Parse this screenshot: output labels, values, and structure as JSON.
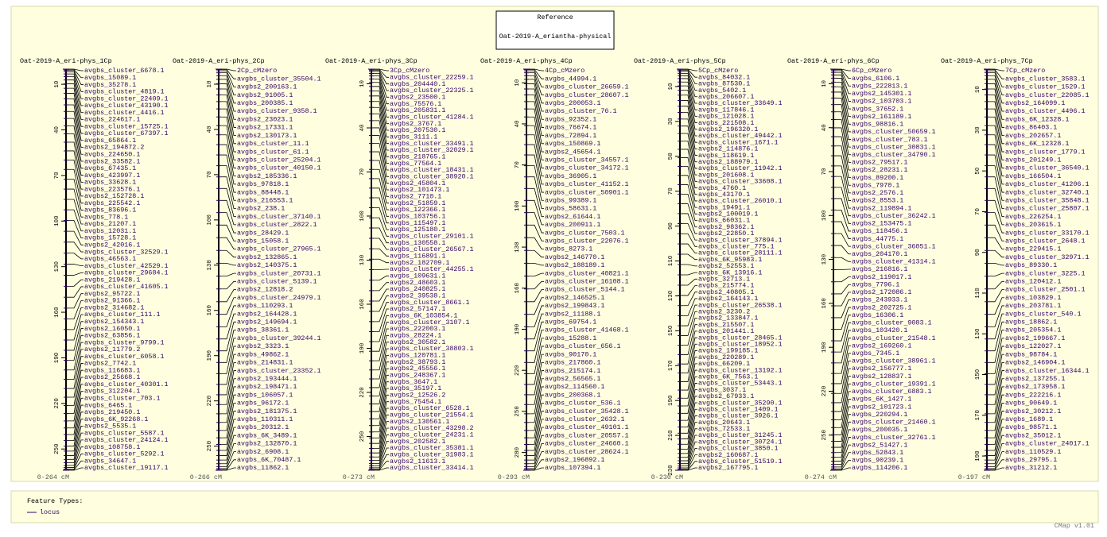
{
  "reference": {
    "heading": "Reference",
    "name": "Oat-2019-A_eriantha-physical"
  },
  "maps": [
    {
      "title": "Oat-2019-A_eri-phys_1Cp",
      "range": {
        "start": 0,
        "end": 264,
        "label": "0-264 cM"
      },
      "ticks": [
        10,
        40,
        70,
        100,
        130,
        160,
        190,
        220,
        250
      ],
      "features": [
        "avgbs_cluster_6678.1",
        "avgbs_15089.1",
        "avgbs_35278.1",
        "avgbs_cluster_4819.1",
        "avgbs_cluster_22409.1",
        "avgbs_cluster_43190.1",
        "avgbs_cluster_4416.1",
        "avgbs_224617.1",
        "avgbs_cluster_15725.1",
        "avgbs_cluster_67397.1",
        "avgbs_65864.1",
        "avgbs2_194872.2",
        "avgbs_224650.1",
        "avgbs2_33582.1",
        "avgbs_67435.1",
        "avgbs_423997.1",
        "avgbs_33628.1",
        "avgbs_223576.1",
        "avgbs2_152728.1",
        "avgbs_225542.1",
        "avgbs_83696.1",
        "avgbs_778.1",
        "avgbs_21207.1",
        "avgbs_12031.1",
        "avgbs_15728.1",
        "avgbs2_42016.1",
        "avgbs_cluster_32529.1",
        "avgbs_46563.1",
        "avgbs_cluster_42529.1",
        "avgbs_cluster_29684.1",
        "avgbs_219428.1",
        "avgbs_cluster_41605.1",
        "avgbs2_95722.1",
        "avgbs2_91366.1",
        "avgbs2_314682.1",
        "avgbs_cluster_111.1",
        "avgbs2_154343.1",
        "avgbs2_16050.1",
        "avgbs2_63856.1",
        "avgbs_cluster_9799.1",
        "avgbs2_11779.2",
        "avgbs_cluster_6058.1",
        "avgbs2_7742.1",
        "avgbs_116683.1",
        "avgbs2_25668.1",
        "avgbs_cluster_40301.1",
        "avgbs_312204.1",
        "avgbs_cluster_703.1",
        "avgbs_6465.1",
        "avgbs_219450.1",
        "avgbs_6K_92268.1",
        "avgbs2_5535.1",
        "avgbs_cluster_5587.1",
        "avgbs_cluster_24124.1",
        "avgbs_108758.1",
        "avgbs_cluster_5292.1",
        "avgbs_34647.1",
        "avgbs_cluster_19117.1"
      ]
    },
    {
      "title": "Oat-2019-A_eri-phys_2Cp",
      "range": {
        "start": 0,
        "end": 266,
        "label": "0-266 cM"
      },
      "ticks": [
        10,
        40,
        70,
        100,
        130,
        160,
        190,
        220,
        250
      ],
      "features": [
        "2Cp_cMzero",
        "avgbs_cluster_35504.1",
        "avgbs2_200163.1",
        "avgbs2_91005.1",
        "avgbs_200385.1",
        "avgbs_cluster_9358.1",
        "avgbs2_23023.1",
        "avgbs2_17331.1",
        "avgbs2_130173.1",
        "avgbs_cluster_11.1",
        "avgbs_cluster_61.1",
        "avgbs_cluster_25204.1",
        "avgbs_cluster_40150.1",
        "avgbs2_185336.1",
        "avgbs_97818.1",
        "avgbs_88448.1",
        "avgbs_216553.1",
        "avgbs2_238.1",
        "avgbs_cluster_37140.1",
        "avgbs_cluster_2822.1",
        "avgbs_28429.1",
        "avgbs_15058.1",
        "avgbs_cluster_27965.1",
        "avgbs2_132865.1",
        "avgbs2_140375.1",
        "avgbs_cluster_20731.1",
        "avgbs_cluster_5139.1",
        "avgbs2_12818.2",
        "avgbs_cluster_24979.1",
        "avgbs_110293.1",
        "avgbs2_164428.1",
        "avgbs2_149694.1",
        "avgbs_38361.1",
        "avgbs_cluster_39244.1",
        "avgbs2_3323.1",
        "avgbs_49862.1",
        "avgbs_214831.1",
        "avgbs_cluster_23352.1",
        "avgbs2_193444.1",
        "avgbs2_198471.1",
        "avgbs_106057.1",
        "avgbs_96172.1",
        "avgbs2_181375.1",
        "avgbs_110311.1",
        "avgbs_20312.1",
        "avgbs_6K_3489.1",
        "avgbs2_132870.1",
        "avgbs2_6908.1",
        "avgbs_6K_70487.1",
        "avgbs_11862.1"
      ]
    },
    {
      "title": "Oat-2019-A_eri-phys_3Cp",
      "range": {
        "start": 0,
        "end": 273,
        "label": "0-273 cM"
      },
      "ticks": [
        10,
        40,
        70,
        100,
        130,
        160,
        190,
        220,
        250
      ],
      "features": [
        "3Cp_cMzero",
        "avgbs_cluster_22259.1",
        "avgbs_204440.1",
        "avgbs_cluster_22325.1",
        "avgbs2_23500.1",
        "avgbs_75576.1",
        "avgbs_205831.1",
        "avgbs_cluster_41284.1",
        "avgbs2_3767.1",
        "avgbs_207530.1",
        "avgbs_3111.1",
        "avgbs_cluster_33491.1",
        "avgbs_cluster_32029.1",
        "avgbs_218765.1",
        "avgbs_77564.1",
        "avgbs_cluster_18431.1",
        "avgbs_cluster_38920.1",
        "avgbs2_45804.1",
        "avgbs2_101473.1",
        "avgbs2_7710.1",
        "avgbs2_51859.1",
        "avgbs_122366.1",
        "avgbs_103756.1",
        "avgbs_115497.1",
        "avgbs_125180.1",
        "avgbs_cluster_29101.1",
        "avgbs_130558.1",
        "avgbs_cluster_26567.1",
        "avgbs_116891.1",
        "avgbs2_182709.1",
        "avgbs_cluster_44255.1",
        "avgbs_109631.1",
        "avgbs2_48603.1",
        "avgbs_240825.1",
        "avgbs2_39538.1",
        "avgbs_cluster_8661.1",
        "avgbs2_57147.1",
        "avgbs_6K_103854.1",
        "avgbs_cluster_3107.1",
        "avgbs_222003.1",
        "avgbs_28224.1",
        "avgbs2_30582.1",
        "avgbs_cluster_38803.1",
        "avgbs_120781.1",
        "avgbs2_38793.1",
        "avgbs2_45556.1",
        "avgbs_248367.1",
        "avgbs_3647.1",
        "avgbs_35197.1",
        "avgbs2_12526.2",
        "avgbs_75454.1",
        "avgbs_cluster_6528.1",
        "avgbs_cluster_21554.1",
        "avgbs2_130561.1",
        "avgbs_cluster_43298.2",
        "avgbs_cluster_24231.1",
        "avgbs_202582.1",
        "avgbs_cluster_35381.1",
        "avgbs_cluster_31983.1",
        "avgbs2_11613.1",
        "avgbs_cluster_33414.1"
      ]
    },
    {
      "title": "Oat-2019-A_eri-phys_4Cp",
      "range": {
        "start": 0,
        "end": 293,
        "label": "0-293 cM"
      },
      "ticks": [
        10,
        40,
        70,
        100,
        130,
        160,
        190,
        220,
        250,
        280
      ],
      "features": [
        "4Cp_cMzero",
        "avgbs_44994.1",
        "avgbs_cluster_26659.1",
        "avgbs_cluster_28607.1",
        "avgbs_200053.1",
        "avgbs_cluster_76.1",
        "avgbs_92352.1",
        "avgbs_76674.1",
        "avgbs_72894.1",
        "avgbs_150869.1",
        "avgbs2_45654.1",
        "avgbs_cluster_34557.1",
        "avgbs_cluster_34172.1",
        "avgbs_36905.1",
        "avgbs_cluster_41152.1",
        "avgbs_cluster_50901.1",
        "avgbs_99389.1",
        "avgbs_58631.1",
        "avgbs2_61644.1",
        "avgbs_200911.1",
        "avgbs_cluster_7503.1",
        "avgbs_cluster_22076.1",
        "avgbs_8273.1",
        "avgbs2_146770.1",
        "avgbs2_188189.1",
        "avgbs_cluster_40821.1",
        "avgbs_cluster_16108.1",
        "avgbs_cluster_5144.1",
        "avgbs2_146525.1",
        "avgbs2_199843.1",
        "avgbs2_11188.1",
        "avgbs_69754.1",
        "avgbs_cluster_41468.1",
        "avgbs_15288.1",
        "avgbs_cluster_656.1",
        "avgbs_90170.1",
        "avgbs_217860.1",
        "avgbs_215174.1",
        "avgbs2_56565.1",
        "avgbs2_114560.1",
        "avgbs_200368.1",
        "avgbs_cluster_536.1",
        "avgbs_cluster_35428.1",
        "avgbs_cluster_2632.1",
        "avgbs_cluster_49101.1",
        "avgbs_cluster_20557.1",
        "avgbs_cluster_24660.1",
        "avgbs_cluster_28624.1",
        "avgbs2_196892.1",
        "avgbs_107394.1"
      ]
    },
    {
      "title": "Oat-2019-A_eri-phys_5Cp",
      "range": {
        "start": 0,
        "end": 230,
        "label": "0-230 cM"
      },
      "ticks": [
        10,
        30,
        50,
        70,
        90,
        110,
        130,
        150,
        170,
        190,
        210,
        230
      ],
      "features": [
        "5Cp_cMzero",
        "avgbs_84032.1",
        "avgbs_87530.1",
        "avgbs_5402.1",
        "avgbs_206607.1",
        "avgbs_cluster_33649.1",
        "avgbs_117846.1",
        "avgbs_121028.1",
        "avgbs_221508.1",
        "avgbs2_196320.1",
        "avgbs_cluster_49442.1",
        "avgbs_cluster_1671.1",
        "avgbs2_114876.1",
        "avgbs_118619.1",
        "avgbs2_188979.1",
        "avgbs_cluster_11942.1",
        "avgbs_201608.1",
        "avgbs_cluster_33608.1",
        "avgbs_4760.1",
        "avgbs_43170.1",
        "avgbs_cluster_26010.1",
        "avgbs_19491.1",
        "avgbs2_100019.1",
        "avgbs_66031.1",
        "avgbs2_98362.1",
        "avgbs2_22850.1",
        "avgbs_cluster_37894.1",
        "avgbs_cluster_775.1",
        "avgbs_cluster_28111.1",
        "avgbs_6K_95983.1",
        "avgbs2_52553.1",
        "avgbs_6K_13916.1",
        "avgbs_32713.1",
        "avgbs_215774.1",
        "avgbs2_40805.1",
        "avgbs2_164143.1",
        "avgbs_cluster_26538.1",
        "avgbs2_3230.2",
        "avgbs2_133847.1",
        "avgbs_215507.1",
        "avgbs_201441.1",
        "avgbs_cluster_28465.1",
        "avgbs_cluster_18952.1",
        "avgbs2_199185.1",
        "avgbs_220289.1",
        "avgbs_66209.1",
        "avgbs_cluster_13192.1",
        "avgbs_6K_7563.1",
        "avgbs_cluster_53443.1",
        "avgbs_3037.1",
        "avgbs2_67933.1",
        "avgbs_cluster_35290.1",
        "avgbs_cluster_1409.1",
        "avgbs_cluster_3926.1",
        "avgbs_20643.1",
        "avgbs_72533.1",
        "avgbs_cluster_31245.1",
        "avgbs_cluster_30724.1",
        "avgbs_cluster_3850.1",
        "avgbs2_160687.1",
        "avgbs_cluster_51519.1",
        "avgbs2_167795.1"
      ]
    },
    {
      "title": "Oat-2019-A_eri-phys_6Cp",
      "range": {
        "start": 0,
        "end": 274,
        "label": "0-274 cM"
      },
      "ticks": [
        10,
        40,
        70,
        100,
        130,
        160,
        190,
        220,
        250
      ],
      "features": [
        "6Cp_cMzero",
        "avgbs_6106.1",
        "avgbs_222813.1",
        "avgbs2_145301.1",
        "avgbs2_103703.1",
        "avgbs_37652.1",
        "avgbs2_161189.1",
        "avgbs_98816.1",
        "avgbs_cluster_50659.1",
        "avgbs_cluster_783.1",
        "avgbs_cluster_30831.1",
        "avgbs_cluster_34790.1",
        "avgbs2_79517.1",
        "avgbs2_28231.1",
        "avgbs_89200.1",
        "avgbs_7970.1",
        "avgbs2_2576.1",
        "avgbs2_8553.1",
        "avgbs2_119894.1",
        "avgbs_cluster_36242.1",
        "avgbs2_153475.1",
        "avgbs_118456.1",
        "avgbs_44775.1",
        "avgbs_cluster_36051.1",
        "avgbs_204170.1",
        "avgbs_cluster_41314.1",
        "avgbs_216816.1",
        "avgbs2_119017.1",
        "avgbs_7796.1",
        "avgbs2_172086.1",
        "avgbs_243933.1",
        "avgbs2_202725.1",
        "avgbs_16306.1",
        "avgbs_cluster_9083.1",
        "avgbs_103420.1",
        "avgbs_cluster_21548.1",
        "avgbs2_169260.1",
        "avgbs_7345.1",
        "avgbs_cluster_38961.1",
        "avgbs2_156777.1",
        "avgbs2_128837.1",
        "avgbs_cluster_19391.1",
        "avgbs_cluster_6883.1",
        "avgbs_6K_1427.1",
        "avgbs2_101723.1",
        "avgbs_220294.1",
        "avgbs_cluster_21460.1",
        "avgbs_200035.1",
        "avgbs_cluster_32761.1",
        "avgbs2_51427.1",
        "avgbs_52843.1",
        "avgbs_90239.1",
        "avgbs_114206.1"
      ]
    },
    {
      "title": "Oat-2019-A_eri-phys_7Cp",
      "range": {
        "start": 0,
        "end": 197,
        "label": "0-197 cM"
      },
      "ticks": [
        10,
        30,
        50,
        70,
        90,
        110,
        130,
        150,
        170,
        190
      ],
      "features": [
        "7Cp_cMzero",
        "avgbs_cluster_3583.1",
        "avgbs_cluster_1529.1",
        "avgbs_cluster_22085.1",
        "avgbs2_164099.1",
        "avgbs_cluster_4496.1",
        "avgbs_6K_12328.1",
        "avgbs_86403.1",
        "avgbs_202657.1",
        "avgbs_6K_12328.1",
        "avgbs_cluster_1779.1",
        "avgbs_201249.1",
        "avgbs_cluster_36540.1",
        "avgbs_166504.1",
        "avgbs_cluster_41206.1",
        "avgbs_cluster_32740.1",
        "avgbs_cluster_35848.1",
        "avgbs_cluster_25807.1",
        "avgbs_226254.1",
        "avgbs_203615.1",
        "avgbs_cluster_33170.1",
        "avgbs_cluster_2648.1",
        "avgbs_229415.1",
        "avgbs_cluster_32971.1",
        "avgbs_89330.1",
        "avgbs_cluster_3225.1",
        "avgbs_120412.1",
        "avgbs_cluster_2501.1",
        "avgbs_103829.1",
        "avgbs_203781.1",
        "avgbs_cluster_540.1",
        "avgbs_18862.1",
        "avgbs_205354.1",
        "avgbs2_199667.1",
        "avgbs_122027.1",
        "avgbs_98784.1",
        "avgbs2_146904.1",
        "avgbs_cluster_16344.1",
        "avgbs2_137255.1",
        "avgbs2_173958.1",
        "avgbs_222216.1",
        "avgbs_90649.1",
        "avgbs2_30212.1",
        "avgbs_1689.1",
        "avgbs_98571.1",
        "avgbs2_35012.1",
        "avgbs_cluster_24017.1",
        "avgbs_110529.1",
        "avgbs_29795.1",
        "avgbs_31212.1"
      ]
    }
  ],
  "legend": {
    "heading": "Feature Types:",
    "items": [
      "locus"
    ]
  },
  "footer": "CMap v1.01"
}
